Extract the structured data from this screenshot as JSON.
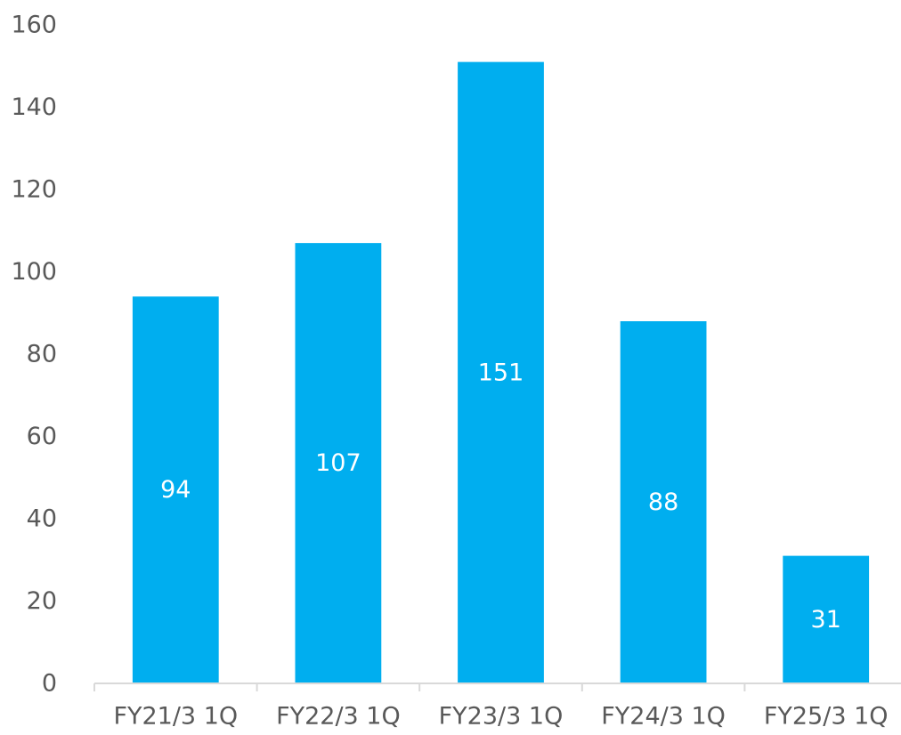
{
  "chart_data": {
    "type": "bar",
    "categories": [
      "FY21/3 1Q",
      "FY22/3 1Q",
      "FY23/3 1Q",
      "FY24/3 1Q",
      "FY25/3 1Q"
    ],
    "values": [
      94,
      107,
      151,
      88,
      31
    ],
    "data_labels": [
      "94",
      "107",
      "151",
      "88",
      "31"
    ],
    "ylim": [
      0,
      160
    ],
    "yticks": [
      0,
      20,
      40,
      60,
      80,
      100,
      120,
      140,
      160
    ],
    "title": "",
    "xlabel": "",
    "ylabel": "",
    "grid": false,
    "legend": "none",
    "colors": {
      "bar": "#00AEEF",
      "axis": "#D9D9D9",
      "text": "#595959",
      "data_label": "#FFFFFF"
    }
  }
}
